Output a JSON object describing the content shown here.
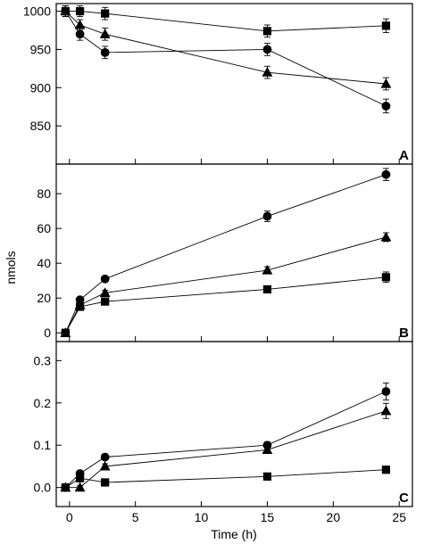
{
  "chart_data": {
    "type": "line",
    "shared_x_label": "Time (h)",
    "shared_y_label": "nmols",
    "x_ticks": [
      0,
      5,
      10,
      15,
      20,
      25
    ],
    "xlim": [
      -1,
      26
    ],
    "grid": false,
    "legend": "none",
    "panels": [
      {
        "panel_label": "A",
        "ylim": [
          800,
          1010
        ],
        "y_ticks": [
          850,
          900,
          950,
          1000
        ],
        "series": [
          {
            "marker": "square",
            "x": [
              -0.3,
              0.8,
              2.7,
              15,
              24
            ],
            "y": [
              1000,
              1000,
              997,
              974,
              981
            ],
            "err": [
              7,
              7,
              8,
              8,
              9
            ]
          },
          {
            "marker": "triangle",
            "x": [
              -0.3,
              0.8,
              2.7,
              15,
              24
            ],
            "y": [
              1000,
              982,
              970,
              920,
              905
            ],
            "err": [
              7,
              7,
              8,
              8,
              8
            ]
          },
          {
            "marker": "circle",
            "x": [
              -0.3,
              0.8,
              2.7,
              15,
              24
            ],
            "y": [
              1000,
              970,
              946,
              950,
              876
            ],
            "err": [
              7,
              8,
              8,
              8,
              9
            ]
          }
        ]
      },
      {
        "panel_label": "B",
        "ylim": [
          -5,
          97
        ],
        "y_ticks": [
          0,
          20,
          40,
          60,
          80
        ],
        "series": [
          {
            "marker": "circle",
            "x": [
              -0.3,
              0.8,
              2.7,
              15,
              24
            ],
            "y": [
              0,
              19,
              31,
              67,
              91
            ],
            "err": [
              0.8,
              1.5,
              1.5,
              3,
              3.5
            ]
          },
          {
            "marker": "triangle",
            "x": [
              -0.3,
              0.8,
              2.7,
              15,
              24
            ],
            "y": [
              0,
              16,
              23,
              36,
              55
            ],
            "err": [
              0.8,
              1.5,
              1.5,
              2,
              2.5
            ]
          },
          {
            "marker": "square",
            "x": [
              -0.3,
              0.8,
              2.7,
              15,
              24
            ],
            "y": [
              0,
              15,
              18,
              25,
              32
            ],
            "err": [
              0.8,
              1,
              1,
              1.5,
              3
            ]
          }
        ]
      },
      {
        "panel_label": "C",
        "ylim": [
          -0.045,
          0.345
        ],
        "y_ticks": [
          0.0,
          0.1,
          0.2,
          0.3
        ],
        "series": [
          {
            "marker": "circle",
            "x": [
              -0.3,
              0.8,
              2.7,
              15,
              24
            ],
            "y": [
              0,
              0.033,
              0.072,
              0.1,
              0.227
            ],
            "err": [
              0.003,
              0.005,
              0.006,
              0.008,
              0.02
            ]
          },
          {
            "marker": "triangle",
            "x": [
              -0.3,
              0.8,
              2.7,
              15,
              24
            ],
            "y": [
              0,
              0.0,
              0.05,
              0.089,
              0.181
            ],
            "err": [
              0.003,
              0.004,
              0.006,
              0.008,
              0.018
            ]
          },
          {
            "marker": "square",
            "x": [
              -0.3,
              0.8,
              2.7,
              15,
              24
            ],
            "y": [
              0,
              0.022,
              0.012,
              0.026,
              0.042
            ],
            "err": [
              0.003,
              0.004,
              0.003,
              0.004,
              0.005
            ]
          }
        ]
      }
    ]
  }
}
